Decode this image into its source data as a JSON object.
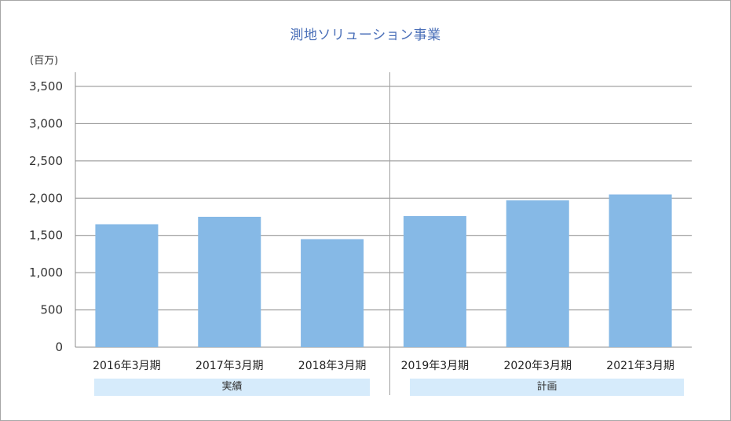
{
  "title": "測地ソリューション事業",
  "unit_label": "(百万)",
  "groups": [
    {
      "label": "実績"
    },
    {
      "label": "計画"
    }
  ],
  "colors": {
    "bar": "#86b9e6",
    "grid": "#8c8c8c",
    "title": "#4a6fb8",
    "group_band": "#d6ebfb"
  },
  "chart_data": {
    "type": "bar",
    "categories": [
      "2016年3月期",
      "2017年3月期",
      "2018年3月期",
      "2019年3月期",
      "2020年3月期",
      "2021年3月期"
    ],
    "values": [
      1650,
      1750,
      1450,
      1760,
      1970,
      2050
    ],
    "ylim": [
      0,
      3500
    ],
    "yticks": [
      0,
      500,
      1000,
      1500,
      2000,
      2500,
      3000,
      3500
    ],
    "ytick_labels": [
      "0",
      "500",
      "1,000",
      "1,500",
      "2,000",
      "2,500",
      "3,000",
      "3,500"
    ],
    "grid": true,
    "title": "測地ソリューション事業",
    "ylabel": "(百万)"
  }
}
